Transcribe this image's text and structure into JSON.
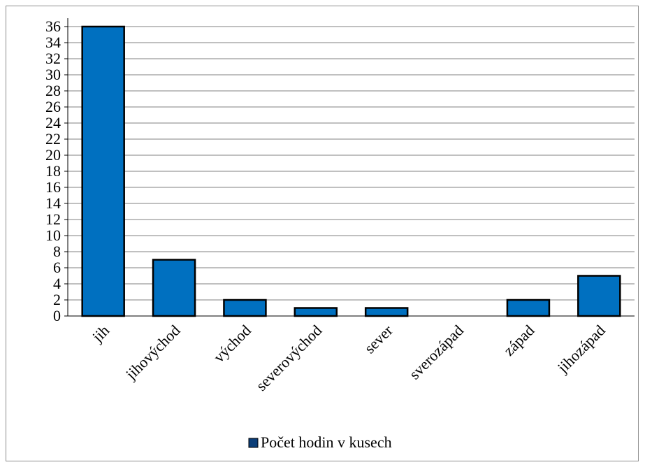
{
  "chart_data": {
    "type": "bar",
    "categories": [
      "jih",
      "jihovýchod",
      "východ",
      "severovýchod",
      "sever",
      "sverozápad",
      "západ",
      "jihozápad"
    ],
    "series": [
      {
        "name": "Počet hodin v kusech",
        "values": [
          36,
          7,
          2,
          1,
          1,
          0,
          2,
          5
        ]
      }
    ],
    "ylim": [
      0,
      36
    ],
    "yticks": [
      0,
      2,
      4,
      6,
      8,
      10,
      12,
      14,
      16,
      18,
      20,
      22,
      24,
      26,
      28,
      30,
      32,
      34,
      36
    ],
    "grid": true,
    "legend_position": "bottom",
    "colors": {
      "bar_fill": "#0070c0",
      "bar_stroke": "#000000",
      "legend_swatch": "#0a3d78",
      "gridline": "#808080",
      "frame": "#8c8c8c"
    }
  }
}
